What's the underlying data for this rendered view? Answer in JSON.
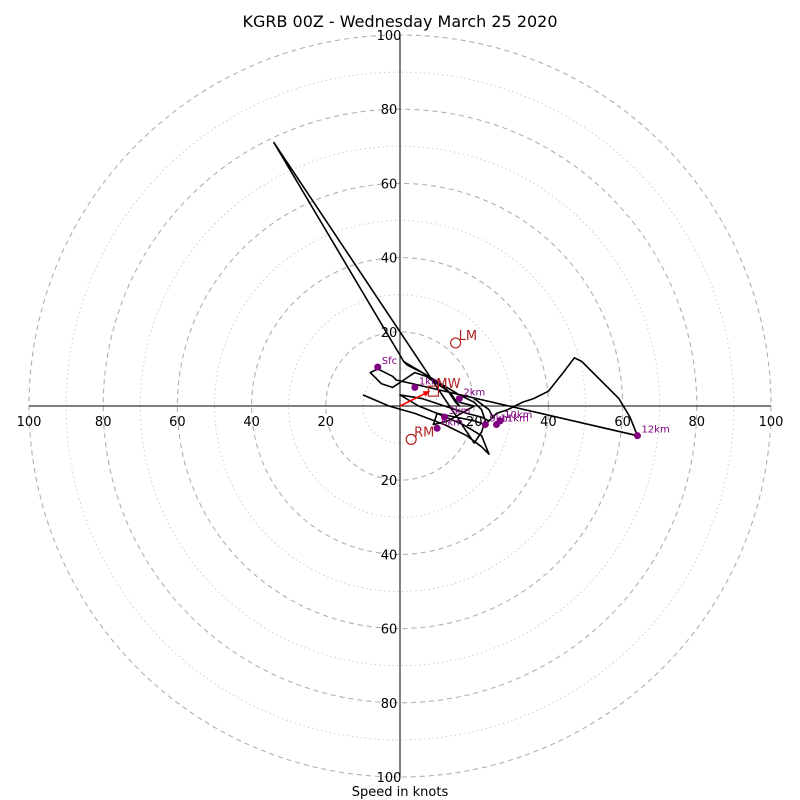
{
  "chart_data": {
    "type": "line",
    "title": "KGRB 00Z - Wednesday March 25 2020",
    "xlabel": "Speed in knots",
    "ring_step_major": 20,
    "ring_step_minor": 10,
    "max_speed": 100,
    "tick_values": [
      20,
      40,
      60,
      80,
      100
    ],
    "grid": true,
    "colors": {
      "hodograph": "#000000",
      "height_marker": "#800080",
      "storm_motion": "#b22222",
      "mean_wind_arrow": "#ff0000",
      "major_ring": "#b0b0b0",
      "minor_ring": "#c8c8c8",
      "axes": "#000000"
    },
    "hodograph": {
      "name": "",
      "u": [
        -10,
        -3,
        4,
        12,
        18,
        22,
        24,
        22,
        17,
        10,
        5,
        0,
        6,
        12,
        18,
        22,
        24,
        26,
        29,
        31,
        33,
        36,
        40,
        44,
        47,
        49,
        53,
        59,
        62,
        64,
        -1,
        -2,
        -6,
        -8,
        -5,
        -2,
        1,
        4,
        7,
        10,
        13,
        15,
        16,
        14,
        12,
        9,
        6,
        4,
        2,
        1,
        6,
        11,
        16,
        20,
        22,
        23,
        22,
        20,
        -34,
        1,
        16,
        16,
        20,
        13,
        9,
        10,
        15,
        20,
        23,
        25,
        24,
        20
      ],
      "v": [
        3,
        0,
        -2,
        -5,
        -8,
        -11,
        -13,
        -8,
        -5,
        -2,
        0,
        3,
        2,
        0,
        -2,
        -3,
        -4,
        -2,
        -1,
        0,
        1,
        2,
        4,
        9,
        13,
        12,
        8,
        2,
        -3,
        -8,
        7,
        8,
        10,
        9,
        6,
        5,
        7,
        9,
        8,
        6,
        4,
        1,
        0,
        3,
        5,
        7,
        9,
        10,
        11,
        12,
        9,
        6,
        3,
        1,
        -1,
        -4,
        -7,
        -10,
        71,
        12,
        3,
        1,
        0,
        -4,
        -5,
        -2,
        -3,
        -4,
        -5,
        -3,
        -1,
        2
      ]
    },
    "height_markers": [
      {
        "label": "Sfc",
        "u": -6,
        "v": 10.5
      },
      {
        "label": "1km",
        "u": 4,
        "v": 5
      },
      {
        "label": "2km",
        "u": 16,
        "v": 2
      },
      {
        "label": "3km",
        "u": 12,
        "v": -3
      },
      {
        "label": "6km",
        "u": 10,
        "v": -6
      },
      {
        "label": "9km",
        "u": 23,
        "v": -5
      },
      {
        "label": "10km",
        "u": 27,
        "v": -4
      },
      {
        "label": "11km",
        "u": 26,
        "v": -5
      },
      {
        "label": "12km",
        "u": 64,
        "v": -8
      }
    ],
    "storm_motion": [
      {
        "label": "LM",
        "u": 15,
        "v": 17
      },
      {
        "label": "RM",
        "u": 3,
        "v": -9
      },
      {
        "label": "MW",
        "u": 9,
        "v": 4
      }
    ],
    "mean_wind_arrow": {
      "u": 8,
      "v": 4
    }
  }
}
